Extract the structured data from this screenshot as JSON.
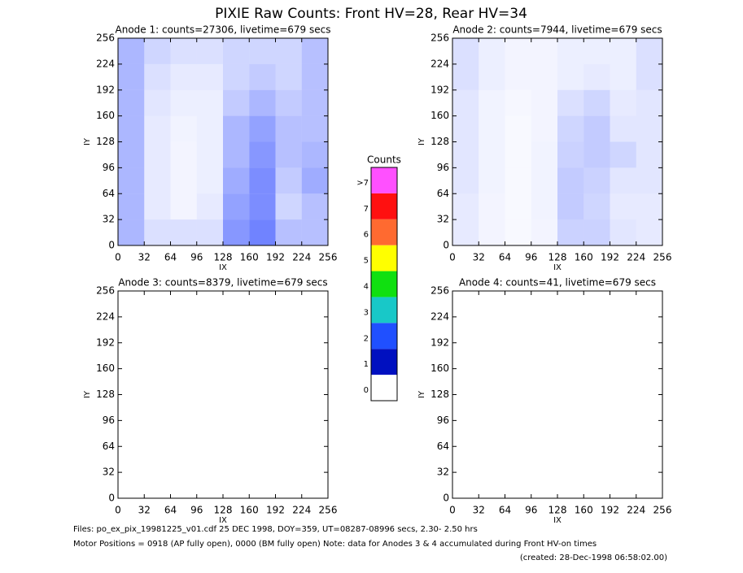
{
  "title": "PIXIE Raw Counts:  Front HV=28, Rear HV=34",
  "chart_data": [
    {
      "type": "heatmap",
      "title": "Anode 1: counts=27306, livetime=679 secs",
      "xlabel": "IX",
      "ylabel": "IY",
      "xlim": [
        0,
        256
      ],
      "ylim": [
        0,
        256
      ],
      "xticks": [
        0,
        32,
        64,
        96,
        128,
        160,
        192,
        224,
        256
      ],
      "yticks": [
        0,
        32,
        64,
        96,
        128,
        160,
        192,
        224,
        256
      ],
      "color": "#1030ff",
      "z": [
        [
          0.35,
          0.2,
          0.15,
          0.15,
          0.2,
          0.2,
          0.2,
          0.3
        ],
        [
          0.35,
          0.15,
          0.1,
          0.1,
          0.2,
          0.25,
          0.2,
          0.3
        ],
        [
          0.35,
          0.12,
          0.08,
          0.08,
          0.25,
          0.35,
          0.25,
          0.3
        ],
        [
          0.35,
          0.1,
          0.06,
          0.08,
          0.35,
          0.45,
          0.3,
          0.3
        ],
        [
          0.35,
          0.1,
          0.05,
          0.08,
          0.35,
          0.5,
          0.3,
          0.35
        ],
        [
          0.35,
          0.1,
          0.05,
          0.08,
          0.4,
          0.55,
          0.25,
          0.4
        ],
        [
          0.35,
          0.1,
          0.05,
          0.1,
          0.45,
          0.55,
          0.2,
          0.3
        ],
        [
          0.35,
          0.15,
          0.15,
          0.15,
          0.5,
          0.6,
          0.3,
          0.3
        ]
      ]
    },
    {
      "type": "heatmap",
      "title": "Anode 2: counts=7944, livetime=679 secs",
      "xlabel": "IX",
      "ylabel": "IY",
      "xlim": [
        0,
        256
      ],
      "ylim": [
        0,
        256
      ],
      "xticks": [
        0,
        32,
        64,
        96,
        128,
        160,
        192,
        224,
        256
      ],
      "yticks": [
        0,
        32,
        64,
        96,
        128,
        160,
        192,
        224,
        256
      ],
      "color": "#1030ff",
      "z": [
        [
          0.15,
          0.08,
          0.05,
          0.05,
          0.08,
          0.08,
          0.08,
          0.15
        ],
        [
          0.15,
          0.08,
          0.05,
          0.05,
          0.08,
          0.1,
          0.08,
          0.15
        ],
        [
          0.12,
          0.06,
          0.04,
          0.05,
          0.15,
          0.2,
          0.1,
          0.12
        ],
        [
          0.12,
          0.06,
          0.03,
          0.05,
          0.2,
          0.25,
          0.12,
          0.12
        ],
        [
          0.12,
          0.06,
          0.03,
          0.06,
          0.22,
          0.25,
          0.2,
          0.12
        ],
        [
          0.12,
          0.06,
          0.03,
          0.06,
          0.25,
          0.22,
          0.12,
          0.12
        ],
        [
          0.1,
          0.05,
          0.03,
          0.06,
          0.25,
          0.2,
          0.1,
          0.1
        ],
        [
          0.1,
          0.05,
          0.03,
          0.05,
          0.22,
          0.22,
          0.12,
          0.1
        ]
      ]
    },
    {
      "type": "heatmap",
      "title": "Anode 3: counts=8379, livetime=679 secs",
      "xlabel": "IX",
      "ylabel": "IY",
      "xlim": [
        0,
        256
      ],
      "ylim": [
        0,
        256
      ],
      "xticks": [
        0,
        32,
        64,
        96,
        128,
        160,
        192,
        224,
        256
      ],
      "yticks": [
        0,
        32,
        64,
        96,
        128,
        160,
        192,
        224,
        256
      ]
    },
    {
      "type": "heatmap",
      "title": "Anode 4: counts=41, livetime=679 secs",
      "xlabel": "IX",
      "ylabel": "IY",
      "xlim": [
        0,
        256
      ],
      "ylim": [
        0,
        256
      ],
      "xticks": [
        0,
        32,
        64,
        96,
        128,
        160,
        192,
        224,
        256
      ],
      "yticks": [
        0,
        32,
        64,
        96,
        128,
        160,
        192,
        224,
        256
      ]
    }
  ],
  "colorbar": {
    "title": "Counts",
    "labels": [
      0,
      1,
      2,
      3,
      4,
      5,
      6,
      7,
      ">7"
    ],
    "colors": [
      "#ffffff",
      "#0010c0",
      "#2050ff",
      "#18c8c8",
      "#10e010",
      "#ffff00",
      "#ff6a30",
      "#ff1010",
      "#ff50ff"
    ]
  },
  "footer": [
    "Files: po_ex_pix_19981225_v01.cdf    25 DEC 1998, DOY=359, UT=08287-08996 secs,  2.30- 2.50 hrs",
    "Motor Positions = 0918 (AP fully open), 0000 (BM fully open)    Note: data for Anodes 3 & 4 accumulated during Front HV-on times",
    "(created: 28-Dec-1998 06:58:02.00)"
  ]
}
